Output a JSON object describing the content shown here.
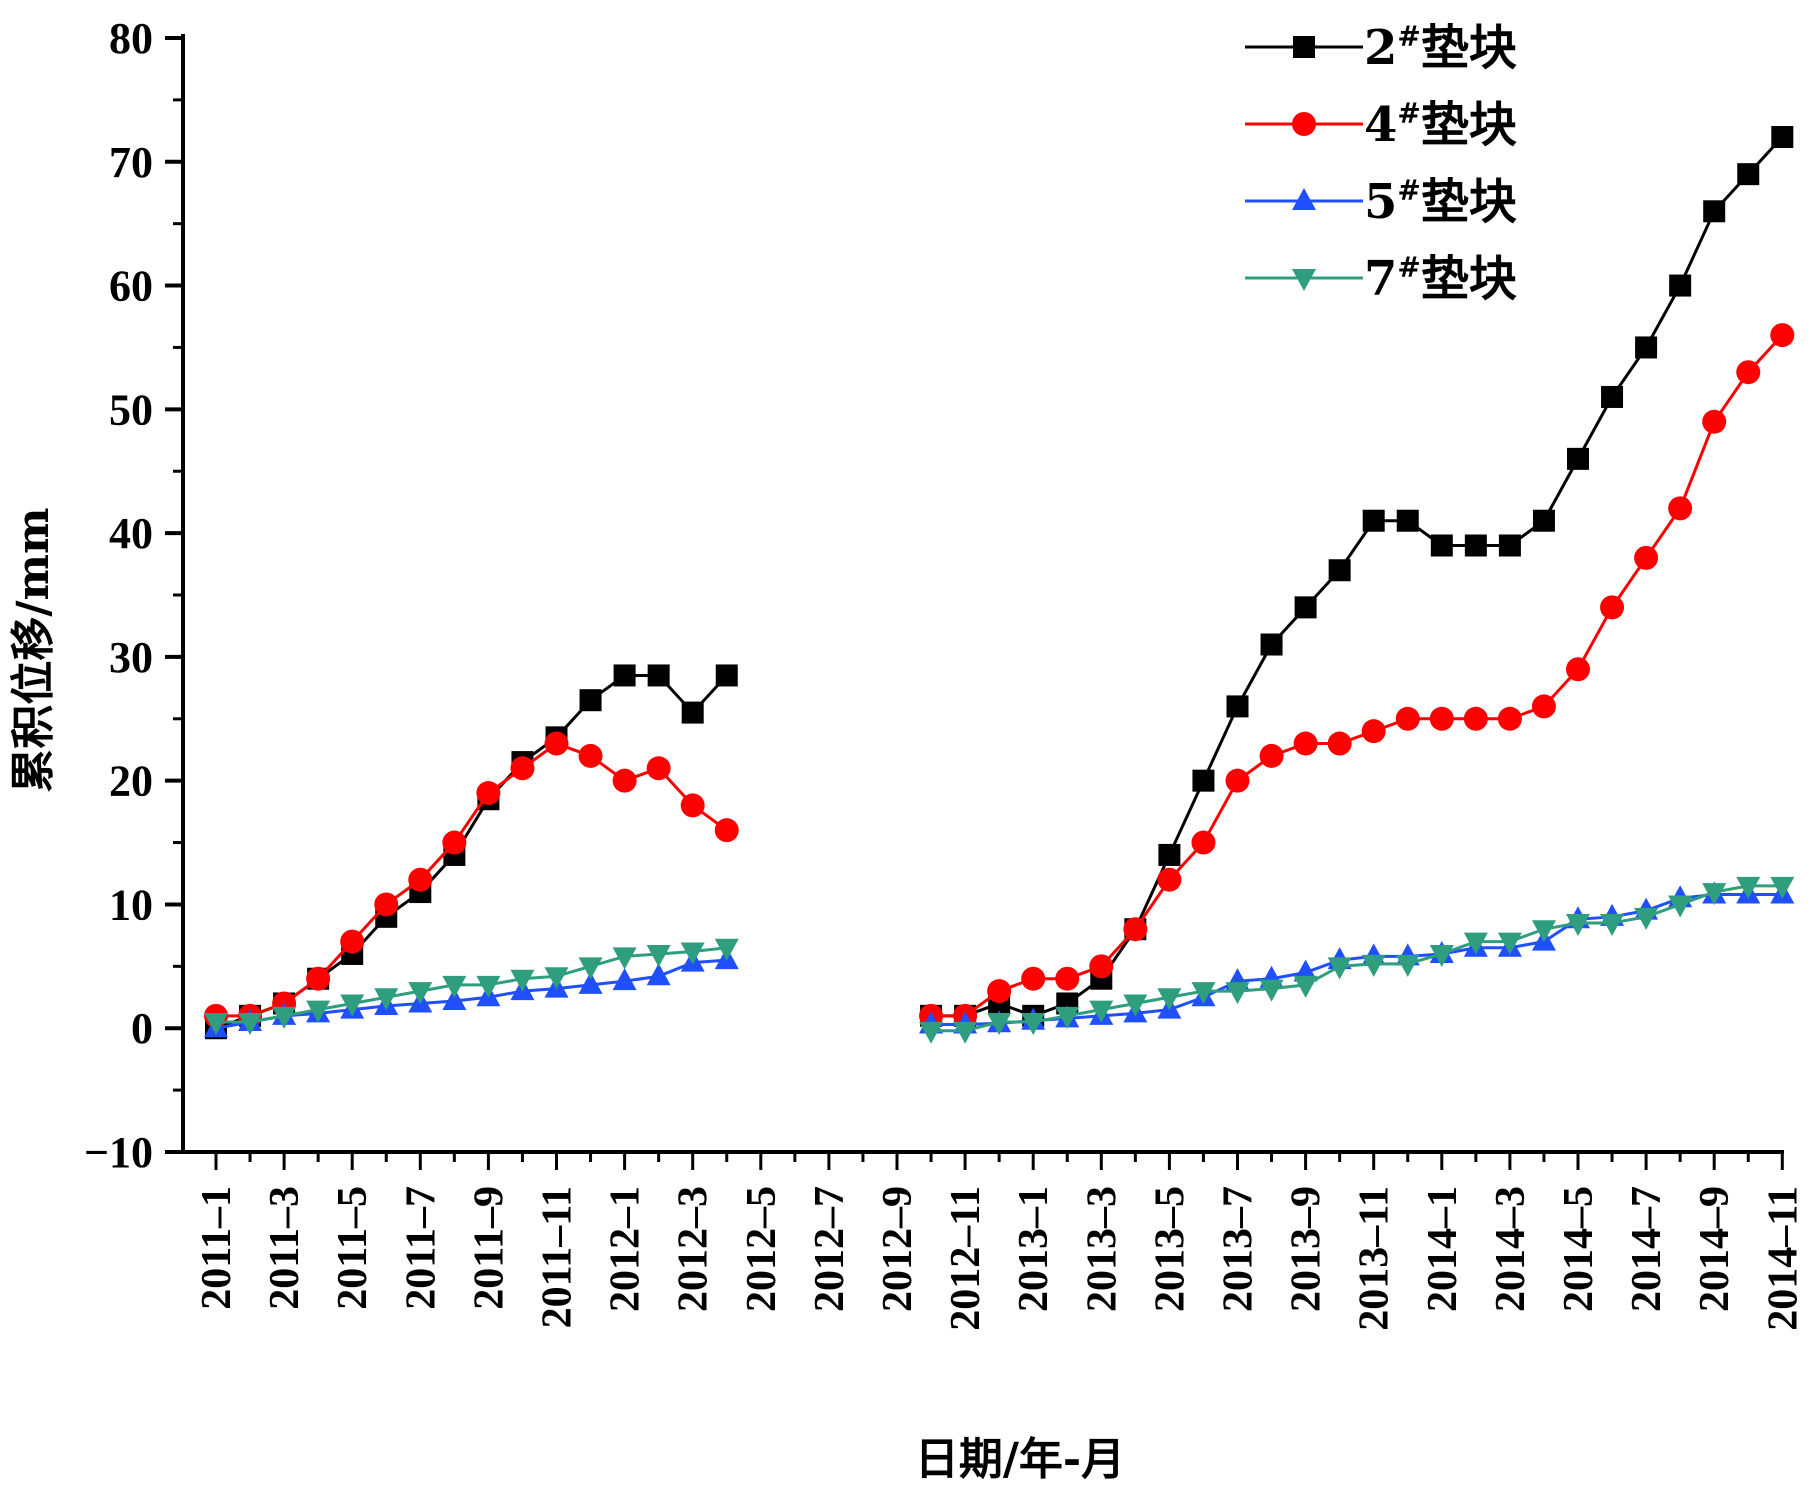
{
  "chart_data": {
    "type": "line",
    "xlabel": "日期/年-月",
    "ylabel": "累积位移/mm",
    "ylim": [
      -10,
      80
    ],
    "yticks": [
      -10,
      0,
      10,
      20,
      30,
      40,
      50,
      60,
      70,
      80
    ],
    "xtick_labels": [
      "2011-1",
      "2011-3",
      "2011-5",
      "2011-7",
      "2011-9",
      "2011-11",
      "2012-1",
      "2012-3",
      "2012-5",
      "2012-7",
      "2012-9",
      "2012-11",
      "2013-1",
      "2013-3",
      "2013-5",
      "2013-7",
      "2013-9",
      "2013-11",
      "2014-1",
      "2014-3",
      "2014-5",
      "2014-7",
      "2014-9",
      "2014-11"
    ],
    "x_dates": [
      "2011-1",
      "2011-2",
      "2011-3",
      "2011-4",
      "2011-5",
      "2011-6",
      "2011-7",
      "2011-8",
      "2011-9",
      "2011-10",
      "2011-11",
      "2011-12",
      "2012-1",
      "2012-2",
      "2012-3",
      "2012-4",
      "2012-10",
      "2012-11",
      "2012-12",
      "2013-1",
      "2013-2",
      "2013-3",
      "2013-4",
      "2013-5",
      "2013-6",
      "2013-7",
      "2013-8",
      "2013-9",
      "2013-10",
      "2013-11",
      "2013-12",
      "2014-1",
      "2014-2",
      "2014-3",
      "2014-4",
      "2014-5",
      "2014-6",
      "2014-7",
      "2014-8",
      "2014-9",
      "2014-10",
      "2014-11"
    ],
    "legend_position": "top-right",
    "grid": false,
    "series": [
      {
        "name": "2#垫块",
        "label_num": "2",
        "label_sup": "#",
        "label_rest": "垫块",
        "color": "#000000",
        "marker": "square",
        "values": [
          0,
          1,
          2,
          4,
          6,
          9,
          11,
          14,
          18.5,
          21.5,
          23.5,
          26.5,
          28.5,
          28.5,
          25.5,
          28.5,
          1,
          1,
          2,
          1,
          2,
          4,
          8,
          14,
          20,
          26,
          31,
          34,
          37,
          41,
          41,
          39,
          39,
          39,
          41,
          46,
          51,
          55,
          60,
          66,
          69,
          72
        ]
      },
      {
        "name": "4#垫块",
        "label_num": "4",
        "label_sup": "#",
        "label_rest": "垫块",
        "color": "#ff0000",
        "marker": "circle",
        "values": [
          1,
          1,
          2,
          4,
          7,
          10,
          12,
          15,
          19,
          21,
          23,
          22,
          20,
          21,
          18,
          16,
          1,
          1,
          3,
          4,
          4,
          5,
          8,
          12,
          15,
          20,
          22,
          23,
          23,
          24,
          25,
          25,
          25,
          25,
          26,
          29,
          34,
          38,
          42,
          49,
          53,
          56
        ]
      },
      {
        "name": "5#垫块",
        "label_num": "5",
        "label_sup": "#",
        "label_rest": "垫块",
        "color": "#1f4fff",
        "marker": "triangle-up",
        "values": [
          0,
          0.5,
          1,
          1.2,
          1.5,
          1.8,
          2,
          2.2,
          2.5,
          3,
          3.2,
          3.5,
          3.8,
          4.2,
          5.3,
          5.5,
          0.3,
          0.3,
          0.4,
          0.6,
          0.8,
          1,
          1.2,
          1.5,
          2.5,
          3.8,
          4,
          4.5,
          5.5,
          5.8,
          5.8,
          6,
          6.5,
          6.5,
          7,
          8.8,
          9,
          9.5,
          10.5,
          10.8,
          10.8,
          10.8
        ]
      },
      {
        "name": "7#垫块",
        "label_num": "7",
        "label_sup": "#",
        "label_rest": "垫块",
        "color": "#2e9e7e",
        "marker": "triangle-down",
        "values": [
          0.5,
          0.5,
          1,
          1.5,
          2,
          2.5,
          3,
          3.5,
          3.5,
          4,
          4.2,
          5,
          5.8,
          6,
          6.2,
          6.5,
          -0.2,
          -0.2,
          0.5,
          0.5,
          1,
          1.5,
          2,
          2.5,
          3,
          3,
          3.2,
          3.5,
          5,
          5.2,
          5.2,
          6,
          7,
          7,
          8,
          8.5,
          8.5,
          9,
          10,
          11,
          11.5,
          11.5
        ]
      }
    ]
  }
}
